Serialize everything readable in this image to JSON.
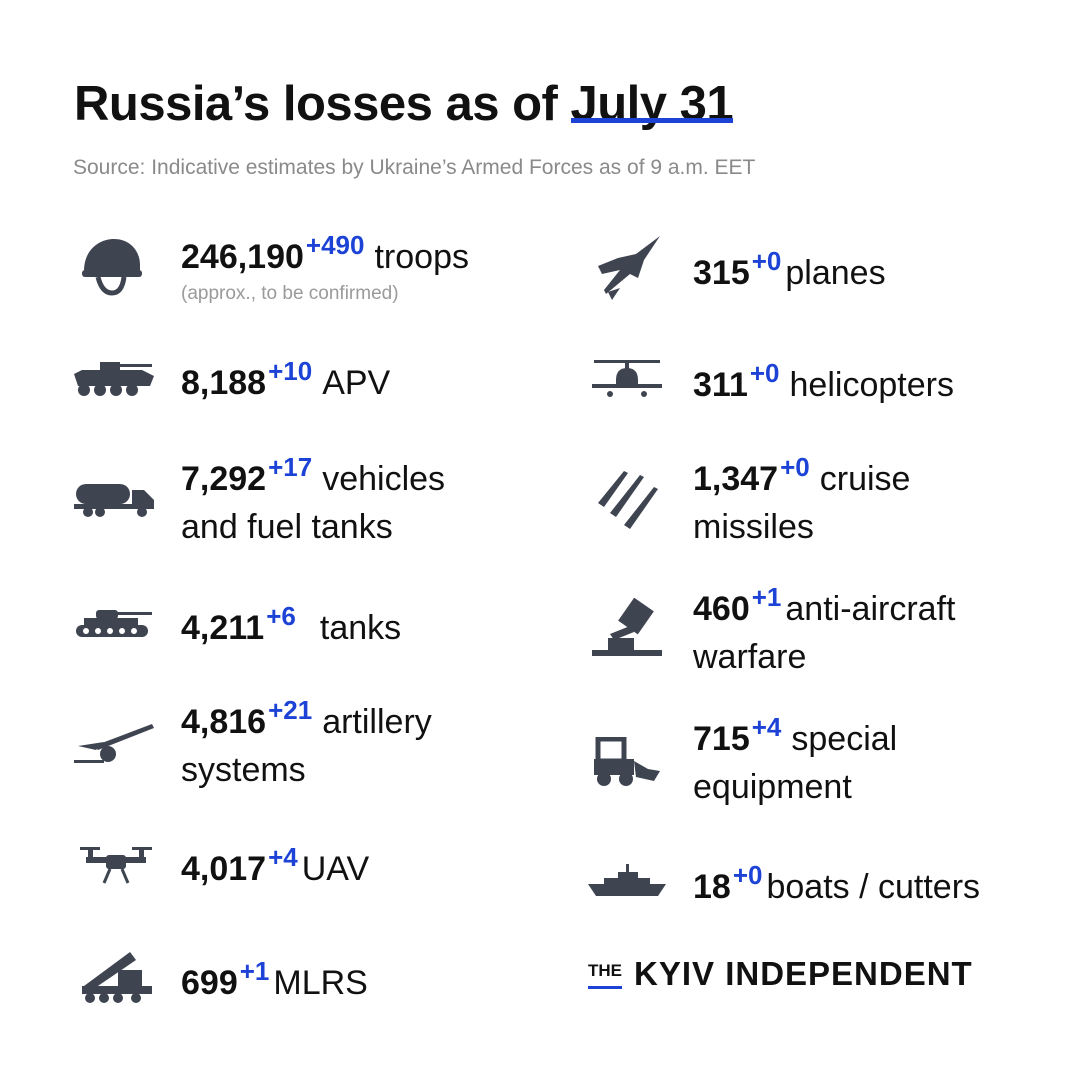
{
  "title": {
    "prefix": "Russia’s losses as of ",
    "date": "July 31"
  },
  "source": "Source: Indicative estimates by Ukraine’s Armed Forces as of 9 a.m. EET",
  "left": [
    {
      "icon": "helmet-icon",
      "value": "246,190",
      "delta": "+490",
      "label": "troops",
      "note": "(approx., to be confirmed)"
    },
    {
      "icon": "apv-icon",
      "value": "8,188",
      "delta": "+10",
      "label": "APV"
    },
    {
      "icon": "fuel-truck-icon",
      "value": "7,292",
      "delta": "+17",
      "label": "vehicles",
      "line2": "and fuel tanks"
    },
    {
      "icon": "tank-icon",
      "value": "4,211",
      "delta": "+6",
      "label": "tanks"
    },
    {
      "icon": "artillery-icon",
      "value": "4,816",
      "delta": "+21",
      "label": "artillery",
      "line2": "systems"
    },
    {
      "icon": "drone-icon",
      "value": "4,017",
      "delta": "+4",
      "label": "UAV"
    },
    {
      "icon": "mlrs-icon",
      "value": "699",
      "delta": "+1",
      "label": "MLRS"
    }
  ],
  "right": [
    {
      "icon": "jet-icon",
      "value": "315",
      "delta": "+0",
      "label": "planes"
    },
    {
      "icon": "helicopter-icon",
      "value": "311",
      "delta": "+0",
      "label": "helicopters"
    },
    {
      "icon": "missiles-icon",
      "value": "1,347",
      "delta": "+0",
      "label": "cruise",
      "line2": "missiles"
    },
    {
      "icon": "anti-aircraft-icon",
      "value": "460",
      "delta": "+1",
      "label": "anti-aircraft",
      "line2": "warfare"
    },
    {
      "icon": "loader-icon",
      "value": "715",
      "delta": "+4",
      "label": "special",
      "line2": "equipment"
    },
    {
      "icon": "boat-icon",
      "value": "18",
      "delta": "+0",
      "label": "boats / cutters"
    }
  ],
  "brand": {
    "the": "THE",
    "name": "KYIV INDEPENDENT"
  },
  "colors": {
    "accent": "#1c43d6",
    "icon": "#3f4451",
    "text": "#111111",
    "muted": "#8a8a8a"
  }
}
